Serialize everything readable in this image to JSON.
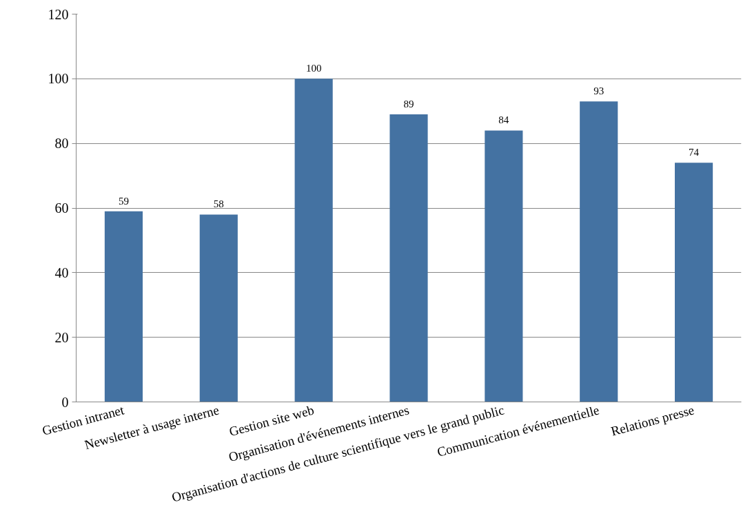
{
  "chart_data": {
    "type": "bar",
    "categories": [
      "Gestion intranet",
      "Newsletter à usage interne",
      "Gestion site web",
      "Organisation d'événements internes",
      "Organisation d'actions de culture scientifique vers le grand public",
      "Communication événementielle",
      "Relations presse"
    ],
    "values": [
      59,
      58,
      100,
      89,
      84,
      93,
      74
    ],
    "color": "#4472a2",
    "ylim": [
      0,
      120
    ],
    "yticks": [
      0,
      20,
      40,
      60,
      80,
      100,
      120
    ],
    "grid": "y",
    "data_labels": true
  }
}
